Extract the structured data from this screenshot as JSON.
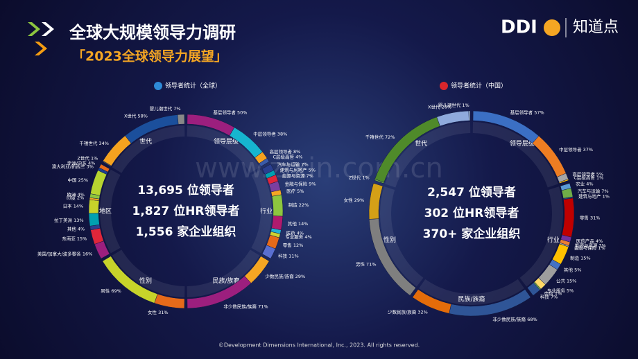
{
  "header": {
    "title": "全球大规模领导力调研",
    "subtitle": "「2023全球领导力展望」",
    "logo_ddi": "DDI",
    "logo_partner": "知道点"
  },
  "watermark": "www.zixin.com.cn",
  "footer": "©Development Dimensions International, Inc., 2023. All rights reserved.",
  "panels": [
    {
      "title": "领导者统计（全球）",
      "stats": [
        {
          "count": "13,695",
          "unit": "位领导者"
        },
        {
          "count": "1,827",
          "unit": "位HR领导者"
        },
        {
          "count": "1,556",
          "unit": "家企业组织"
        }
      ],
      "sections": [
        {
          "name": "领导层级",
          "items": [
            {
              "label": "基层领导者",
              "value": 50,
              "value_label": "50%"
            },
            {
              "label": "中层领导者",
              "value": 38,
              "value_label": "38%"
            },
            {
              "label": "高层领导者",
              "value": 8,
              "value_label": "8%"
            },
            {
              "label": "C层级高管",
              "value": 4,
              "value_label": "4%"
            }
          ]
        },
        {
          "name": "行业",
          "items": [
            {
              "label": "汽车与运输",
              "value": 7,
              "value_label": "7%"
            },
            {
              "label": "建筑与房地产",
              "value": 5,
              "value_label": "5%"
            },
            {
              "label": "能源与资源",
              "value": 7,
              "value_label": "7%"
            },
            {
              "label": "金融与保险",
              "value": 9,
              "value_label": "9%"
            },
            {
              "label": "医疗",
              "value": 5,
              "value_label": "5%"
            },
            {
              "label": "制造",
              "value": 22,
              "value_label": "22%"
            },
            {
              "label": "其他",
              "value": 14,
              "value_label": "14%"
            },
            {
              "label": "医药",
              "value": 4,
              "value_label": "4%"
            },
            {
              "label": "专业服务",
              "value": 4,
              "value_label": "4%"
            },
            {
              "label": "零售",
              "value": 12,
              "value_label": "12%"
            },
            {
              "label": "科技",
              "value": 11,
              "value_label": "11%"
            }
          ]
        },
        {
          "name": "民族/族裔",
          "items": [
            {
              "label": "少数民族/族裔",
              "value": 29,
              "value_label": "29%"
            },
            {
              "label": "非少数民族/族裔",
              "value": 71,
              "value_label": "71%"
            }
          ]
        },
        {
          "name": "性别",
          "items": [
            {
              "label": "女性",
              "value": 31,
              "value_label": "31%"
            },
            {
              "label": "男性",
              "value": 69,
              "value_label": "69%"
            }
          ]
        },
        {
          "name": "地区",
          "items": [
            {
              "label": "美国/加拿大/波多黎各",
              "value": 16,
              "value_label": "16%"
            },
            {
              "label": "东南亚",
              "value": 15,
              "value_label": "15%"
            },
            {
              "label": "其他",
              "value": 4,
              "value_label": "4%"
            },
            {
              "label": "拉丁美洲",
              "value": 13,
              "value_label": "13%"
            },
            {
              "label": "日本",
              "value": 14,
              "value_label": "14%"
            },
            {
              "label": "印度",
              "value": 2,
              "value_label": "2%"
            },
            {
              "label": "欧洲",
              "value": 4,
              "value_label": "4%"
            },
            {
              "label": "中国",
              "value": 25,
              "value_label": "25%"
            },
            {
              "label": "澳大利亚/新西兰",
              "value": 3,
              "value_label": "3%"
            },
            {
              "label": "非洲/中东",
              "value": 4,
              "value_label": "4%"
            }
          ]
        },
        {
          "name": "世代",
          "items": [
            {
              "label": "Z世代",
              "value": 1,
              "value_label": "1%"
            },
            {
              "label": "千禧世代",
              "value": 34,
              "value_label": "34%"
            },
            {
              "label": "X世代",
              "value": 58,
              "value_label": "58%"
            },
            {
              "label": "婴儿潮世代",
              "value": 7,
              "value_label": "7%"
            }
          ]
        }
      ]
    },
    {
      "title": "领导者统计（中国）",
      "stats": [
        {
          "count": "2,547",
          "unit": "位领导者"
        },
        {
          "count": "302",
          "unit": "位HR领导者"
        },
        {
          "count": "370+",
          "unit": "家企业组织"
        }
      ],
      "sections": [
        {
          "name": "领导层级",
          "items": [
            {
              "label": "基层领导者",
              "value": 57,
              "value_label": "57%"
            },
            {
              "label": "中层领导者",
              "value": 37,
              "value_label": "37%"
            },
            {
              "label": "高层领导者",
              "value": 5,
              "value_label": "5%"
            },
            {
              "label": "C层级高管",
              "value": 1,
              "value_label": "1%"
            }
          ]
        },
        {
          "name": "行业",
          "items": [
            {
              "label": "农业",
              "value": 4,
              "value_label": "4%"
            },
            {
              "label": "汽车与运输",
              "value": 7,
              "value_label": "7%"
            },
            {
              "label": "建筑与地产",
              "value": 1,
              "value_label": "1%"
            },
            {
              "label": "零售",
              "value": 31,
              "value_label": "31%"
            },
            {
              "label": "医药产品",
              "value": 4,
              "value_label": "4%"
            },
            {
              "label": "能源与资源",
              "value": 3,
              "value_label": "3%"
            },
            {
              "label": "金融与保险",
              "value": 1,
              "value_label": "1%"
            },
            {
              "label": "制造",
              "value": 15,
              "value_label": "15%"
            },
            {
              "label": "其他",
              "value": 5,
              "value_label": "5%"
            },
            {
              "label": "公共",
              "value": 15,
              "value_label": "15%"
            },
            {
              "label": "专业服务",
              "value": 5,
              "value_label": "5%"
            },
            {
              "label": "电信",
              "value": 1,
              "value_label": "1%"
            },
            {
              "label": "科技",
              "value": 7,
              "value_label": "7%"
            }
          ]
        },
        {
          "name": "民族/族裔",
          "items": [
            {
              "label": "非少数民族/族裔",
              "value": 68,
              "value_label": "68%"
            },
            {
              "label": "少数民族/族裔",
              "value": 32,
              "value_label": "32%"
            }
          ]
        },
        {
          "name": "性别",
          "items": [
            {
              "label": "男性",
              "value": 71,
              "value_label": "71%"
            },
            {
              "label": "女性",
              "value": 29,
              "value_label": "29%"
            }
          ]
        },
        {
          "name": "世代",
          "items": [
            {
              "label": "Z世代",
              "value": 1,
              "value_label": "1%"
            },
            {
              "label": "千禧世代",
              "value": 72,
              "value_label": "72%"
            },
            {
              "label": "X世代",
              "value": 26,
              "value_label": "26%"
            },
            {
              "label": "婴儿潮世代",
              "value": 1,
              "value_label": "1%"
            }
          ]
        }
      ]
    }
  ]
}
